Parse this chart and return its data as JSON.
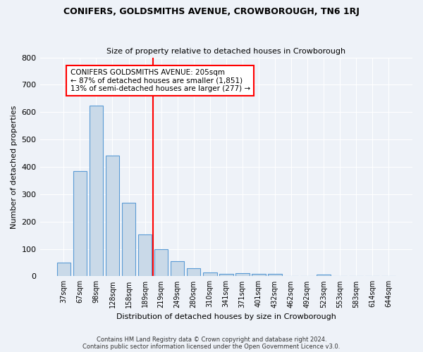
{
  "title": "CONIFERS, GOLDSMITHS AVENUE, CROWBOROUGH, TN6 1RJ",
  "subtitle": "Size of property relative to detached houses in Crowborough",
  "xlabel": "Distribution of detached houses by size in Crowborough",
  "ylabel": "Number of detached properties",
  "bar_color": "#c9d9e8",
  "bar_edge_color": "#5b9bd5",
  "background_color": "#eef2f8",
  "grid_color": "#ffffff",
  "categories": [
    "37sqm",
    "67sqm",
    "98sqm",
    "128sqm",
    "158sqm",
    "189sqm",
    "219sqm",
    "249sqm",
    "280sqm",
    "310sqm",
    "341sqm",
    "371sqm",
    "401sqm",
    "432sqm",
    "462sqm",
    "492sqm",
    "523sqm",
    "553sqm",
    "583sqm",
    "614sqm",
    "644sqm"
  ],
  "values": [
    50,
    385,
    625,
    440,
    270,
    152,
    98,
    55,
    30,
    15,
    10,
    12,
    10,
    8,
    0,
    0,
    7,
    0,
    0,
    0,
    0
  ],
  "ylim": [
    0,
    800
  ],
  "yticks": [
    0,
    100,
    200,
    300,
    400,
    500,
    600,
    700,
    800
  ],
  "marker_line_bin": 5,
  "annotation_line1": "CONIFERS GOLDSMITHS AVENUE: 205sqm",
  "annotation_line2": "← 87% of detached houses are smaller (1,851)",
  "annotation_line3": "13% of semi-detached houses are larger (277) →",
  "footer1": "Contains HM Land Registry data © Crown copyright and database right 2024.",
  "footer2": "Contains public sector information licensed under the Open Government Licence v3.0."
}
